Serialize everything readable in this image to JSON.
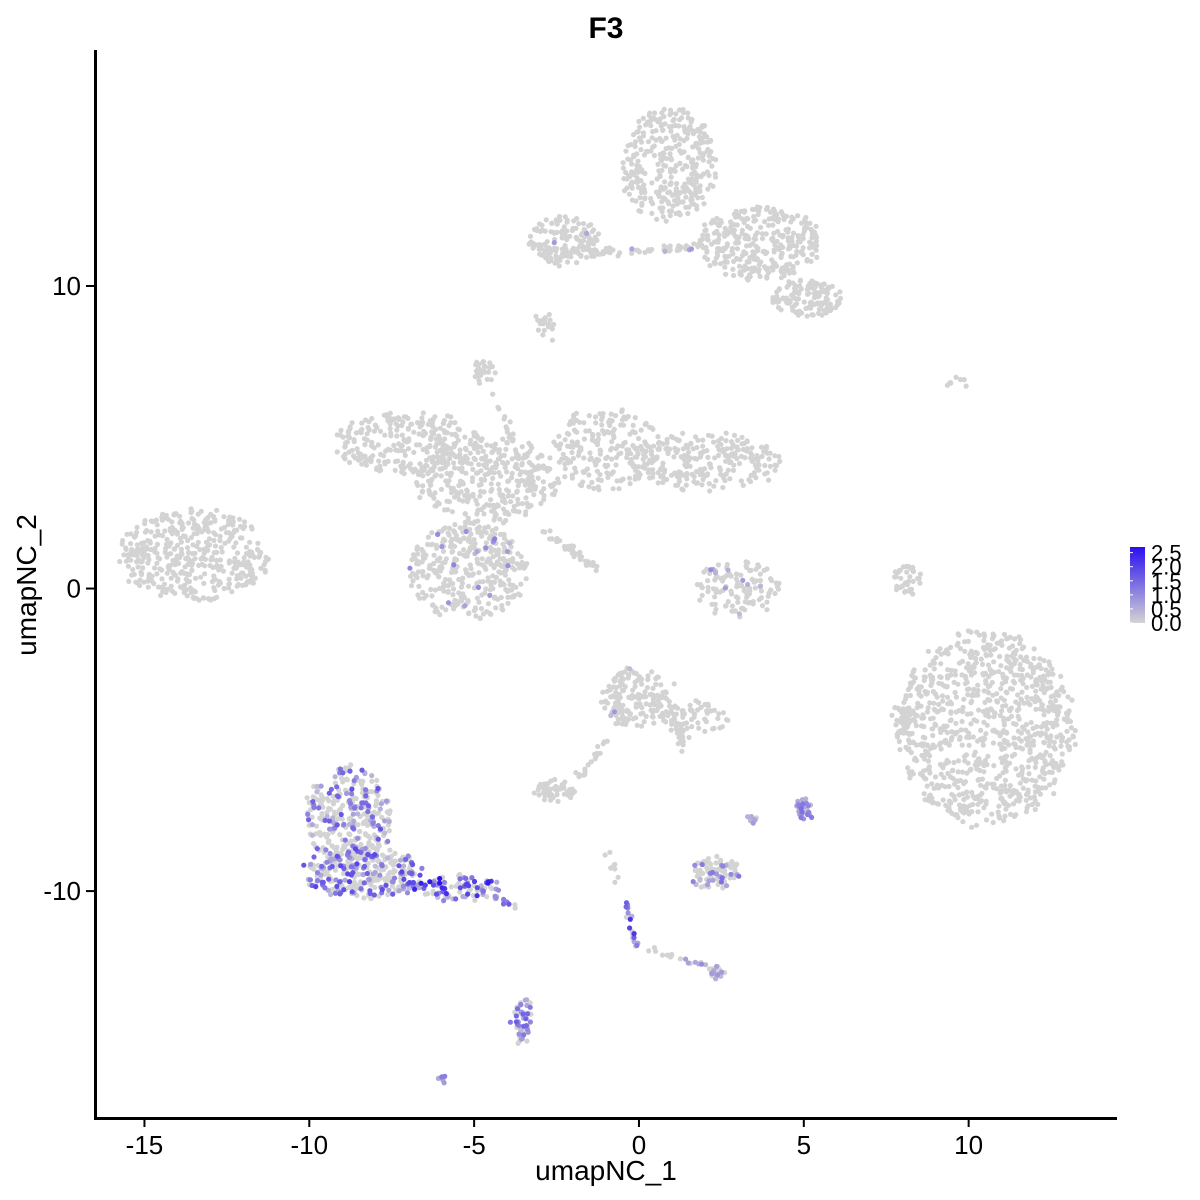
{
  "chart_data": {
    "type": "scatter",
    "title": "F3",
    "xlabel": "umapNC_1",
    "ylabel": "umapNC_2",
    "xlim": [
      -16.5,
      14.5
    ],
    "ylim": [
      -17.5,
      17.8
    ],
    "x_ticks": [
      -15,
      -10,
      -5,
      0,
      5,
      10
    ],
    "x_tick_labels": [
      "-15",
      "-10",
      "-5",
      "0",
      "5",
      "10"
    ],
    "y_ticks": [
      -10,
      0,
      10
    ],
    "y_tick_labels": [
      "-10",
      "0",
      "10"
    ],
    "grid": false,
    "legend": {
      "placement": "right",
      "type": "colorbar",
      "ticks": [
        0.0,
        0.5,
        1.0,
        1.5,
        2.0,
        2.5
      ],
      "tick_labels": [
        "0.0",
        "0.5",
        "1.0",
        "1.5",
        "2.0",
        "2.5"
      ],
      "low_color": "#D3D3D3",
      "high_color": "#2A10F0"
    },
    "expression_range": [
      0,
      2.7
    ],
    "clusters": [
      {
        "cx": -13.5,
        "cy": 1.1,
        "rx": 2.3,
        "ry": 1.5,
        "n": 420,
        "expr_max": 0,
        "expr_frac": 0
      },
      {
        "cx": -7.0,
        "cy": 4.8,
        "rx": 2.2,
        "ry": 1.0,
        "n": 260,
        "expr_max": 0,
        "expr_frac": 0
      },
      {
        "cx": -4.6,
        "cy": 3.6,
        "rx": 2.2,
        "ry": 1.4,
        "n": 320,
        "expr_max": 0,
        "expr_frac": 0
      },
      {
        "cx": -1.0,
        "cy": 4.6,
        "rx": 1.6,
        "ry": 1.4,
        "n": 200,
        "expr_max": 0,
        "expr_frac": 0
      },
      {
        "cx": 1.9,
        "cy": 4.2,
        "rx": 2.4,
        "ry": 0.9,
        "n": 240,
        "expr_max": 0,
        "expr_frac": 0
      },
      {
        "cx": -5.2,
        "cy": 0.6,
        "rx": 1.8,
        "ry": 1.6,
        "n": 360,
        "expr_max": 1.2,
        "expr_frac": 0.04
      },
      {
        "cx": -4.7,
        "cy": 7.2,
        "rx": 0.3,
        "ry": 0.4,
        "n": 30,
        "expr_max": 0,
        "expr_frac": 0
      },
      {
        "cx": -2.2,
        "cy": 11.5,
        "rx": 1.2,
        "ry": 0.8,
        "n": 140,
        "expr_max": 0.8,
        "expr_frac": 0.02
      },
      {
        "cx": 0.9,
        "cy": 14.0,
        "rx": 1.4,
        "ry": 1.9,
        "n": 340,
        "expr_max": 0,
        "expr_frac": 0
      },
      {
        "cx": 3.7,
        "cy": 11.4,
        "rx": 1.9,
        "ry": 1.2,
        "n": 320,
        "expr_max": 0,
        "expr_frac": 0
      },
      {
        "cx": 5.1,
        "cy": 9.6,
        "rx": 1.1,
        "ry": 0.6,
        "n": 120,
        "expr_max": 0,
        "expr_frac": 0
      },
      {
        "cx": -2.8,
        "cy": 8.7,
        "rx": 0.3,
        "ry": 0.4,
        "n": 20,
        "expr_max": 0,
        "expr_frac": 0
      },
      {
        "cx": 3.0,
        "cy": 0.0,
        "rx": 1.3,
        "ry": 0.9,
        "n": 120,
        "expr_max": 1.0,
        "expr_frac": 0.03
      },
      {
        "cx": 0.0,
        "cy": -3.6,
        "rx": 1.1,
        "ry": 1.0,
        "n": 160,
        "expr_max": 0.9,
        "expr_frac": 0.02
      },
      {
        "cx": -2.5,
        "cy": -6.7,
        "rx": 0.6,
        "ry": 0.3,
        "n": 50,
        "expr_max": 0,
        "expr_frac": 0
      },
      {
        "cx": 10.5,
        "cy": -4.6,
        "rx": 2.7,
        "ry": 3.2,
        "n": 900,
        "expr_max": 0,
        "expr_frac": 0
      },
      {
        "cx": 8.0,
        "cy": -4.4,
        "rx": 0.4,
        "ry": 0.6,
        "n": 40,
        "expr_max": 0,
        "expr_frac": 0
      },
      {
        "cx": 8.1,
        "cy": 0.3,
        "rx": 0.4,
        "ry": 0.6,
        "n": 35,
        "expr_max": 0,
        "expr_frac": 0
      },
      {
        "cx": -8.8,
        "cy": -7.5,
        "rx": 1.3,
        "ry": 1.6,
        "n": 320,
        "expr_max": 1.8,
        "expr_frac": 0.35
      },
      {
        "cx": -8.4,
        "cy": -9.4,
        "rx": 1.8,
        "ry": 0.8,
        "n": 280,
        "expr_max": 2.0,
        "expr_frac": 0.38
      },
      {
        "cx": -5.6,
        "cy": -9.9,
        "rx": 1.5,
        "ry": 0.4,
        "n": 110,
        "expr_max": 2.7,
        "expr_frac": 0.55
      },
      {
        "cx": 2.3,
        "cy": -9.4,
        "rx": 0.7,
        "ry": 0.5,
        "n": 90,
        "expr_max": 1.4,
        "expr_frac": 0.3
      },
      {
        "cx": 5.0,
        "cy": -7.3,
        "rx": 0.25,
        "ry": 0.3,
        "n": 25,
        "expr_max": 1.4,
        "expr_frac": 0.85
      },
      {
        "cx": 3.4,
        "cy": -7.6,
        "rx": 0.15,
        "ry": 0.2,
        "n": 8,
        "expr_max": 1.0,
        "expr_frac": 0.4
      },
      {
        "cx": -3.5,
        "cy": -14.3,
        "rx": 0.25,
        "ry": 0.8,
        "n": 55,
        "expr_max": 1.7,
        "expr_frac": 0.55
      },
      {
        "cx": -6.0,
        "cy": -16.2,
        "rx": 0.12,
        "ry": 0.08,
        "n": 6,
        "expr_max": 1.4,
        "expr_frac": 1.0
      },
      {
        "cx": 2.3,
        "cy": -12.7,
        "rx": 0.35,
        "ry": 0.2,
        "n": 15,
        "expr_max": 1.0,
        "expr_frac": 0.4
      },
      {
        "cx": 9.6,
        "cy": 6.7,
        "rx": 0.4,
        "ry": 0.3,
        "n": 8,
        "expr_max": 0,
        "expr_frac": 0
      },
      {
        "cx": 1.7,
        "cy": -4.3,
        "rx": 1.0,
        "ry": 0.6,
        "n": 60,
        "expr_max": 0,
        "expr_frac": 0
      }
    ],
    "trails": [
      {
        "from": [
          -3.0,
          2.0
        ],
        "to": [
          -1.2,
          0.6
        ],
        "n": 40,
        "expr_max": 0,
        "expr_frac": 0
      },
      {
        "from": [
          -4.6,
          7.0
        ],
        "to": [
          -3.2,
          3.2
        ],
        "n": 30,
        "expr_max": 0,
        "expr_frac": 0
      },
      {
        "from": [
          -3.2,
          11.2
        ],
        "to": [
          -0.6,
          11.1
        ],
        "n": 40,
        "expr_max": 0,
        "expr_frac": 0
      },
      {
        "from": [
          -0.6,
          11.1
        ],
        "to": [
          1.8,
          11.3
        ],
        "n": 30,
        "expr_max": 0.8,
        "expr_frac": 0.05
      },
      {
        "from": [
          -1.0,
          -5.0
        ],
        "to": [
          -1.8,
          -6.2
        ],
        "n": 20,
        "expr_max": 0,
        "expr_frac": 0
      },
      {
        "from": [
          1.0,
          -4.2
        ],
        "to": [
          1.4,
          -5.5
        ],
        "n": 18,
        "expr_max": 0,
        "expr_frac": 0
      },
      {
        "from": [
          -4.4,
          -10.2
        ],
        "to": [
          -3.8,
          -10.5
        ],
        "n": 14,
        "expr_max": 2.0,
        "expr_frac": 0.7
      },
      {
        "from": [
          -0.5,
          -10.2
        ],
        "to": [
          0.0,
          -11.9
        ],
        "n": 22,
        "expr_max": 2.3,
        "expr_frac": 0.75
      },
      {
        "from": [
          0.3,
          -11.9
        ],
        "to": [
          2.5,
          -12.6
        ],
        "n": 22,
        "expr_max": 1.0,
        "expr_frac": 0.3
      },
      {
        "from": [
          -0.9,
          -8.7
        ],
        "to": [
          -0.6,
          -10.0
        ],
        "n": 8,
        "expr_max": 0,
        "expr_frac": 0
      },
      {
        "from": [
          4.9,
          -7.1
        ],
        "to": [
          5.2,
          -7.6
        ],
        "n": 6,
        "expr_max": 1.4,
        "expr_frac": 1.0
      }
    ]
  }
}
